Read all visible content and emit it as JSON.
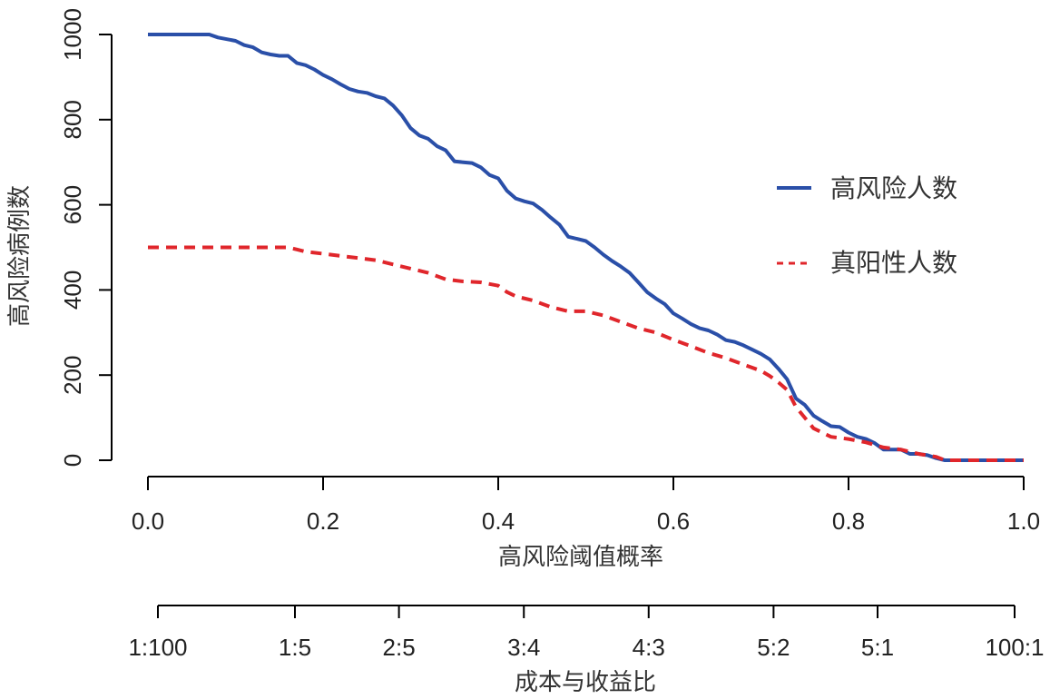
{
  "chart_data": {
    "type": "line",
    "title": "",
    "xlabel": "高风险阈值概率",
    "ylabel": "高风险病例数",
    "xlim": [
      0,
      1
    ],
    "ylim": [
      0,
      1000
    ],
    "x_ticks": [
      "0.0",
      "0.2",
      "0.4",
      "0.6",
      "0.8",
      "1.0"
    ],
    "y_ticks": [
      "0",
      "200",
      "400",
      "600",
      "800",
      "1000"
    ],
    "secondary_axis": {
      "label": "成本与收益比",
      "ticks": [
        {
          "x": 0.0099,
          "label": "1:100"
        },
        {
          "x": 0.1667,
          "label": "1:5"
        },
        {
          "x": 0.2857,
          "label": "2:5"
        },
        {
          "x": 0.4286,
          "label": "3:4"
        },
        {
          "x": 0.5714,
          "label": "4:3"
        },
        {
          "x": 0.7143,
          "label": "5:2"
        },
        {
          "x": 0.8333,
          "label": "5:1"
        },
        {
          "x": 0.9901,
          "label": "100:1"
        }
      ]
    },
    "legend": {
      "position": "right"
    },
    "series": [
      {
        "name": "高风险人数",
        "color": "#2a4fa8",
        "style": "solid",
        "x": [
          0.0,
          0.07,
          0.08,
          0.1,
          0.11,
          0.12,
          0.13,
          0.14,
          0.15,
          0.16,
          0.17,
          0.18,
          0.19,
          0.2,
          0.21,
          0.22,
          0.23,
          0.24,
          0.25,
          0.26,
          0.27,
          0.28,
          0.29,
          0.3,
          0.31,
          0.32,
          0.33,
          0.34,
          0.35,
          0.36,
          0.37,
          0.38,
          0.39,
          0.4,
          0.41,
          0.42,
          0.43,
          0.44,
          0.45,
          0.46,
          0.47,
          0.48,
          0.49,
          0.5,
          0.51,
          0.52,
          0.53,
          0.54,
          0.55,
          0.56,
          0.57,
          0.58,
          0.59,
          0.6,
          0.61,
          0.62,
          0.63,
          0.64,
          0.65,
          0.66,
          0.67,
          0.68,
          0.69,
          0.7,
          0.71,
          0.72,
          0.73,
          0.74,
          0.75,
          0.76,
          0.77,
          0.78,
          0.79,
          0.8,
          0.81,
          0.82,
          0.83,
          0.84,
          0.85,
          0.86,
          0.87,
          0.88,
          0.89,
          0.9,
          0.91,
          1.0
        ],
        "y": [
          1000,
          1000,
          993,
          985,
          975,
          970,
          958,
          953,
          950,
          950,
          933,
          928,
          918,
          905,
          895,
          883,
          872,
          866,
          863,
          855,
          850,
          833,
          810,
          780,
          763,
          755,
          738,
          728,
          702,
          700,
          698,
          688,
          670,
          662,
          633,
          615,
          608,
          603,
          588,
          570,
          553,
          525,
          520,
          515,
          500,
          483,
          468,
          455,
          440,
          418,
          395,
          380,
          367,
          345,
          333,
          320,
          310,
          305,
          295,
          282,
          278,
          270,
          260,
          250,
          237,
          215,
          190,
          145,
          130,
          105,
          92,
          80,
          78,
          65,
          55,
          50,
          40,
          25,
          25,
          25,
          15,
          15,
          12,
          5,
          0,
          0
        ]
      },
      {
        "name": "真阳性人数",
        "color": "#e0262b",
        "style": "dashed",
        "x": [
          0.0,
          0.15,
          0.16,
          0.17,
          0.18,
          0.2,
          0.22,
          0.24,
          0.26,
          0.28,
          0.3,
          0.32,
          0.34,
          0.36,
          0.38,
          0.4,
          0.41,
          0.42,
          0.44,
          0.46,
          0.48,
          0.5,
          0.52,
          0.54,
          0.56,
          0.58,
          0.6,
          0.62,
          0.64,
          0.66,
          0.68,
          0.7,
          0.71,
          0.72,
          0.73,
          0.74,
          0.75,
          0.76,
          0.78,
          0.8,
          0.82,
          0.84,
          0.86,
          0.88,
          0.9,
          0.91,
          1.0
        ],
        "y": [
          500,
          500,
          500,
          495,
          490,
          485,
          480,
          475,
          470,
          460,
          450,
          440,
          425,
          420,
          418,
          410,
          395,
          385,
          375,
          360,
          350,
          350,
          340,
          325,
          310,
          300,
          283,
          268,
          252,
          240,
          225,
          210,
          198,
          183,
          165,
          125,
          100,
          75,
          55,
          50,
          42,
          30,
          25,
          15,
          8,
          0,
          0
        ]
      }
    ]
  }
}
